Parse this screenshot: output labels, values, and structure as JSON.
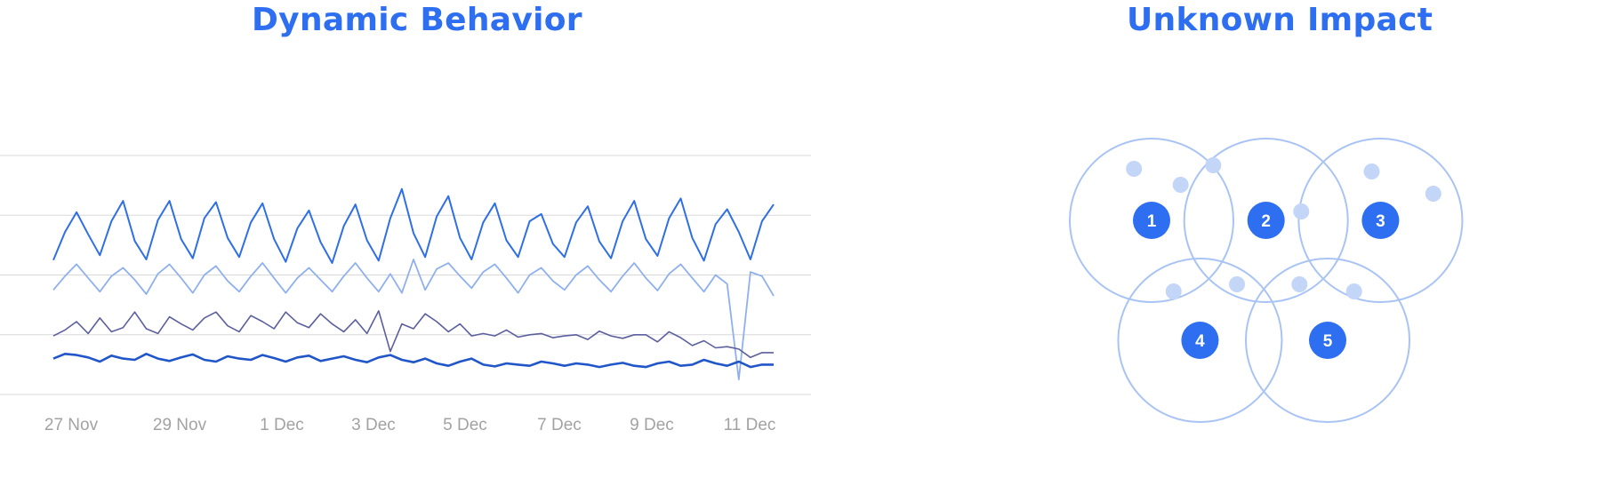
{
  "colors": {
    "title": "#2d6ff0",
    "grid": "#d9d9d9",
    "tick": "#a2a2a2",
    "series": [
      "#2f6fe6",
      "#8fb0ef",
      "#5b5f9e",
      "#2156c9"
    ],
    "venn_circle": "#a9c4f4",
    "venn_dot": "#c3d6f7",
    "venn_badge": "#2d6ff0"
  },
  "chart_data": [
    {
      "type": "line",
      "title": "Dynamic Behavior",
      "xlabel": "",
      "ylabel": "",
      "x_ticks": [
        "27 Nov",
        "29 Nov",
        "1 Dec",
        "3 Dec",
        "5 Dec",
        "7 Dec",
        "9 Dec",
        "11 Dec"
      ],
      "x_range": [
        "26 Nov",
        "12 Dec"
      ],
      "y_gridlines": 4,
      "ylim": [
        0,
        4
      ],
      "y_tick_labels_shown": false,
      "legend": "none",
      "series": [
        {
          "values": [
            2.25,
            2.72,
            3.05,
            2.68,
            2.33,
            2.9,
            3.24,
            2.57,
            2.26,
            2.92,
            3.24,
            2.6,
            2.28,
            2.95,
            3.22,
            2.62,
            2.3,
            2.88,
            3.2,
            2.6,
            2.22,
            2.78,
            3.08,
            2.55,
            2.2,
            2.82,
            3.18,
            2.58,
            2.24,
            2.95,
            3.44,
            2.7,
            2.3,
            2.98,
            3.32,
            2.62,
            2.26,
            2.88,
            3.2,
            2.58,
            2.3,
            2.9,
            3.02,
            2.52,
            2.3,
            2.88,
            3.15,
            2.56,
            2.28,
            2.9,
            3.24,
            2.6,
            2.32,
            2.95,
            3.28,
            2.62,
            2.24,
            2.85,
            3.1,
            2.72,
            2.26,
            2.9,
            3.18
          ]
        },
        {
          "values": [
            1.75,
            1.98,
            2.18,
            1.95,
            1.72,
            1.98,
            2.12,
            1.92,
            1.68,
            2.02,
            2.18,
            1.95,
            1.7,
            2.0,
            2.15,
            1.9,
            1.72,
            1.98,
            2.2,
            1.95,
            1.7,
            1.95,
            2.12,
            1.92,
            1.72,
            1.98,
            2.2,
            1.95,
            1.72,
            2.02,
            1.7,
            2.26,
            1.75,
            2.1,
            2.2,
            1.98,
            1.78,
            2.05,
            2.18,
            1.95,
            1.7,
            2.0,
            2.12,
            1.9,
            1.75,
            2.0,
            2.15,
            1.92,
            1.72,
            1.98,
            2.2,
            1.95,
            1.74,
            2.02,
            2.18,
            1.95,
            1.72,
            2.0,
            1.85,
            0.25,
            2.05,
            1.98,
            1.65
          ]
        },
        {
          "values": [
            0.98,
            1.08,
            1.22,
            1.02,
            1.28,
            1.05,
            1.12,
            1.38,
            1.1,
            1.02,
            1.3,
            1.18,
            1.08,
            1.28,
            1.38,
            1.15,
            1.05,
            1.32,
            1.22,
            1.1,
            1.38,
            1.2,
            1.12,
            1.35,
            1.18,
            1.05,
            1.25,
            1.02,
            1.4,
            0.72,
            1.18,
            1.1,
            1.35,
            1.22,
            1.05,
            1.18,
            0.98,
            1.02,
            0.98,
            1.08,
            0.96,
            1.0,
            1.02,
            0.95,
            0.98,
            1.0,
            0.92,
            1.06,
            0.98,
            0.94,
            1.0,
            1.0,
            0.88,
            1.05,
            0.95,
            0.82,
            0.9,
            0.78,
            0.8,
            0.76,
            0.62,
            0.7,
            0.7
          ]
        },
        {
          "values": [
            0.6,
            0.68,
            0.66,
            0.62,
            0.55,
            0.65,
            0.6,
            0.58,
            0.68,
            0.6,
            0.56,
            0.62,
            0.67,
            0.58,
            0.55,
            0.64,
            0.6,
            0.58,
            0.66,
            0.61,
            0.55,
            0.62,
            0.65,
            0.56,
            0.6,
            0.64,
            0.58,
            0.54,
            0.62,
            0.66,
            0.58,
            0.54,
            0.6,
            0.52,
            0.48,
            0.55,
            0.6,
            0.5,
            0.47,
            0.52,
            0.5,
            0.48,
            0.55,
            0.52,
            0.48,
            0.52,
            0.5,
            0.46,
            0.5,
            0.53,
            0.48,
            0.46,
            0.52,
            0.55,
            0.48,
            0.5,
            0.58,
            0.52,
            0.48,
            0.55,
            0.46,
            0.5,
            0.5
          ]
        }
      ]
    },
    {
      "type": "diagram",
      "title": "Unknown Impact",
      "circles": [
        {
          "label": "1",
          "cx": 1,
          "cy": 1,
          "dots": [
            [
              0.8,
              0.42
            ],
            [
              1.33,
              0.6
            ]
          ]
        },
        {
          "label": "2",
          "cx": 2.3,
          "cy": 1,
          "dots": [
            [
              1.7,
              0.38
            ],
            [
              2.7,
              0.9
            ]
          ]
        },
        {
          "label": "3",
          "cx": 3.6,
          "cy": 1,
          "dots": [
            [
              3.5,
              0.45
            ],
            [
              4.2,
              0.7
            ]
          ]
        },
        {
          "label": "4",
          "cx": 1.55,
          "cy": 2.35,
          "dots": [
            [
              1.25,
              1.8
            ],
            [
              1.97,
              1.72
            ]
          ]
        },
        {
          "label": "5",
          "cx": 3.0,
          "cy": 2.35,
          "dots": [
            [
              2.68,
              1.72
            ],
            [
              3.3,
              1.8
            ]
          ]
        }
      ]
    }
  ]
}
